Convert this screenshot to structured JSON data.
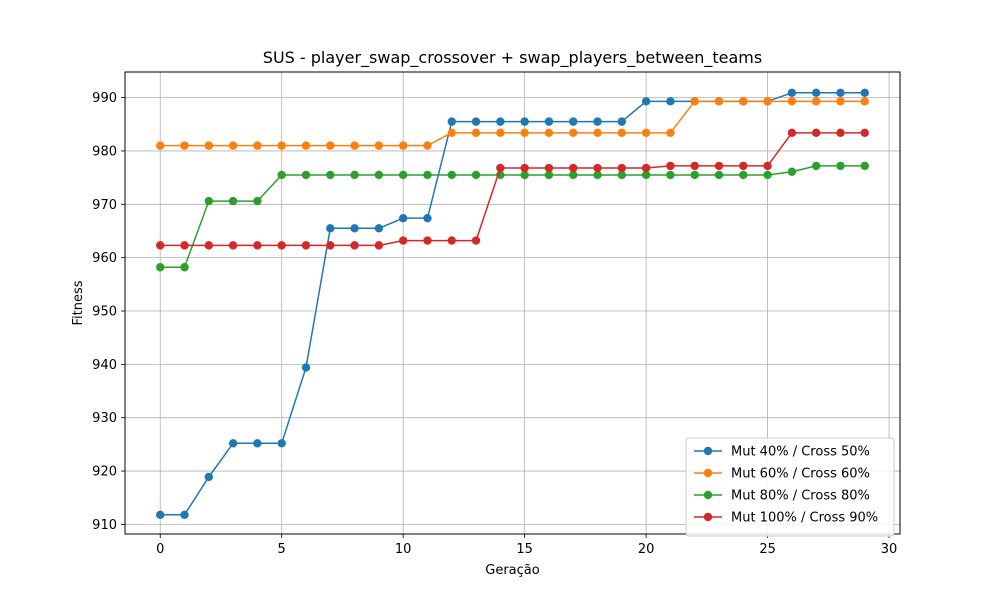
{
  "chart_data": {
    "type": "line",
    "title": "SUS - player_swap_crossover + swap_players_between_teams",
    "xlabel": "Geração",
    "ylabel": "Fitness",
    "xlim": [
      -1.45,
      30.45
    ],
    "ylim": [
      908.2,
      994.8
    ],
    "xticks": [
      0,
      5,
      10,
      15,
      20,
      25,
      30
    ],
    "yticks": [
      910,
      920,
      930,
      940,
      950,
      960,
      970,
      980,
      990
    ],
    "grid": true,
    "legend_position": "lower-right",
    "x": [
      0,
      1,
      2,
      3,
      4,
      5,
      6,
      7,
      8,
      9,
      10,
      11,
      12,
      13,
      14,
      15,
      16,
      17,
      18,
      19,
      20,
      21,
      22,
      23,
      24,
      25,
      26,
      27,
      28,
      29
    ],
    "series": [
      {
        "name": "Mut 40% / Cross 50%",
        "color": "#1f77b4",
        "values": [
          911.8,
          911.8,
          918.9,
          925.2,
          925.2,
          925.2,
          939.4,
          965.5,
          965.5,
          965.5,
          967.4,
          967.4,
          985.5,
          985.5,
          985.5,
          985.5,
          985.5,
          985.5,
          985.5,
          985.5,
          989.3,
          989.3,
          989.3,
          989.3,
          989.3,
          989.3,
          990.9,
          990.9,
          990.9,
          990.9
        ]
      },
      {
        "name": "Mut 60% / Cross 60%",
        "color": "#ff7f0e",
        "values": [
          981.0,
          981.0,
          981.0,
          981.0,
          981.0,
          981.0,
          981.0,
          981.0,
          981.0,
          981.0,
          981.0,
          981.0,
          983.4,
          983.4,
          983.4,
          983.4,
          983.4,
          983.4,
          983.4,
          983.4,
          983.4,
          983.4,
          989.3,
          989.3,
          989.3,
          989.3,
          989.3,
          989.3,
          989.3,
          989.3
        ]
      },
      {
        "name": "Mut 80% / Cross 80%",
        "color": "#2ca02c",
        "values": [
          958.2,
          958.2,
          970.6,
          970.6,
          970.6,
          975.5,
          975.5,
          975.5,
          975.5,
          975.5,
          975.5,
          975.5,
          975.5,
          975.5,
          975.5,
          975.5,
          975.5,
          975.5,
          975.5,
          975.5,
          975.5,
          975.5,
          975.5,
          975.5,
          975.5,
          975.5,
          976.1,
          977.2,
          977.2,
          977.2
        ]
      },
      {
        "name": "Mut 100% / Cross 90%",
        "color": "#d62728",
        "values": [
          962.3,
          962.3,
          962.3,
          962.3,
          962.3,
          962.3,
          962.3,
          962.3,
          962.3,
          962.3,
          963.2,
          963.2,
          963.2,
          963.2,
          976.8,
          976.8,
          976.8,
          976.8,
          976.8,
          976.8,
          976.8,
          977.2,
          977.2,
          977.2,
          977.2,
          977.2,
          983.4,
          983.4,
          983.4,
          983.4
        ]
      }
    ]
  }
}
